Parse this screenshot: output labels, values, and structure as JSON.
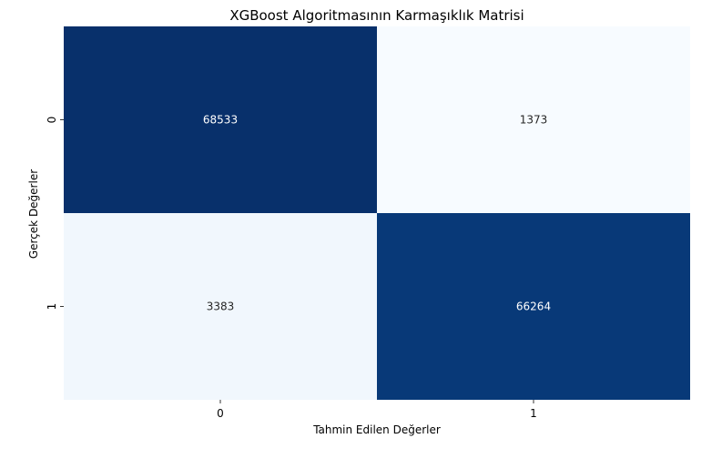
{
  "chart_data": {
    "type": "heatmap",
    "title": "XGBoost Algoritmasının Karmaşıklık Matrisi",
    "xlabel": "Tahmin Edilen Değerler",
    "ylabel": "Gerçek Değerler",
    "x_categories": [
      "0",
      "1"
    ],
    "y_categories": [
      "0",
      "1"
    ],
    "values": [
      [
        68533,
        1373
      ],
      [
        3383,
        66264
      ]
    ],
    "colormap": "Blues",
    "colorbar": false,
    "grid": false,
    "colors": {
      "low": "#f7fbff",
      "high": "#08306b",
      "text_on_dark": "#ffffff",
      "text_on_light": "#262626"
    }
  }
}
